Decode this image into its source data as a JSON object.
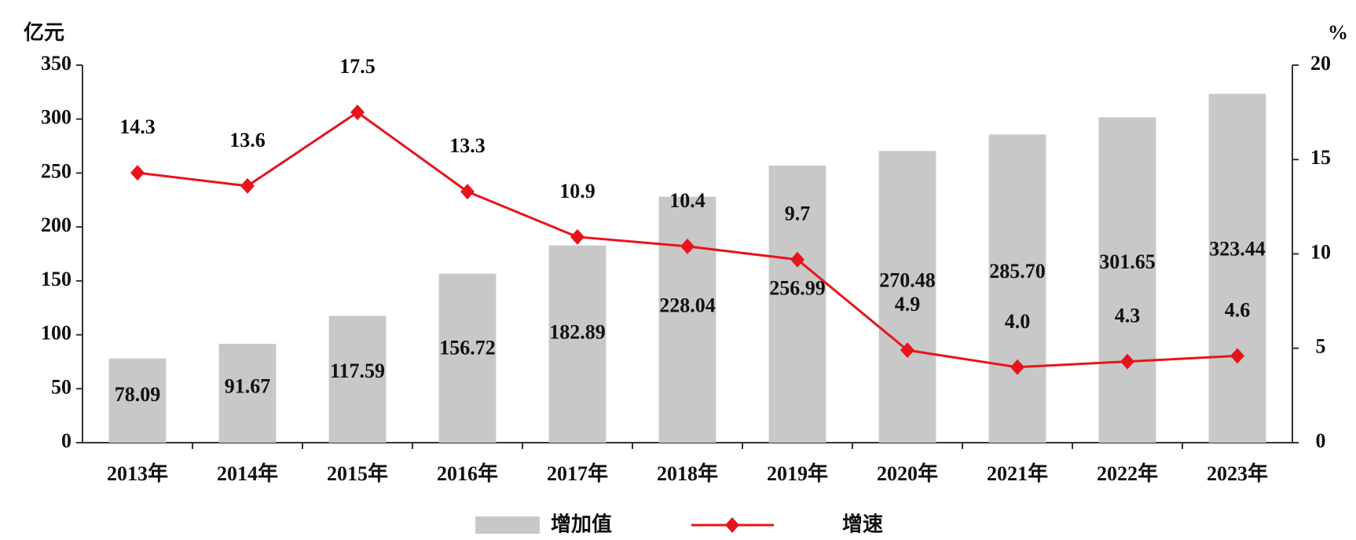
{
  "chart_data": {
    "type": "bar",
    "y_label": "亿元",
    "y2_label": "%",
    "categories": [
      "2013年",
      "2014年",
      "2015年",
      "2016年",
      "2017年",
      "2018年",
      "2019年",
      "2020年",
      "2021年",
      "2022年",
      "2023年"
    ],
    "series": [
      {
        "name": "增加值",
        "color": "#c8c8c8",
        "values": [
          78.09,
          91.67,
          117.59,
          156.72,
          182.89,
          228.04,
          256.99,
          270.48,
          285.7,
          301.65,
          323.44
        ],
        "value_labels": [
          "78.09",
          "91.67",
          "117.59",
          "156.72",
          "182.89",
          "228.04",
          "256.99",
          "270.48",
          "285.70",
          "301.65",
          "323.44"
        ]
      },
      {
        "name": "增速",
        "type": "line",
        "axis": "y2",
        "color": "#e8141b",
        "values": [
          14.3,
          13.6,
          17.5,
          13.3,
          10.9,
          10.4,
          9.7,
          4.9,
          4,
          4.3,
          4.6
        ],
        "value_labels": [
          "14.3",
          "13.6",
          "17.5",
          "13.3",
          "10.9",
          "10.4",
          "9.7",
          "4.9",
          "4.0",
          "4.3",
          "4.6"
        ]
      }
    ],
    "ylim": [
      0,
      350
    ],
    "yticks": [
      0,
      50,
      100,
      150,
      200,
      250,
      300,
      350
    ],
    "y2lim": [
      0,
      20
    ],
    "y2ticks": [
      0,
      5,
      10,
      15,
      20
    ]
  }
}
